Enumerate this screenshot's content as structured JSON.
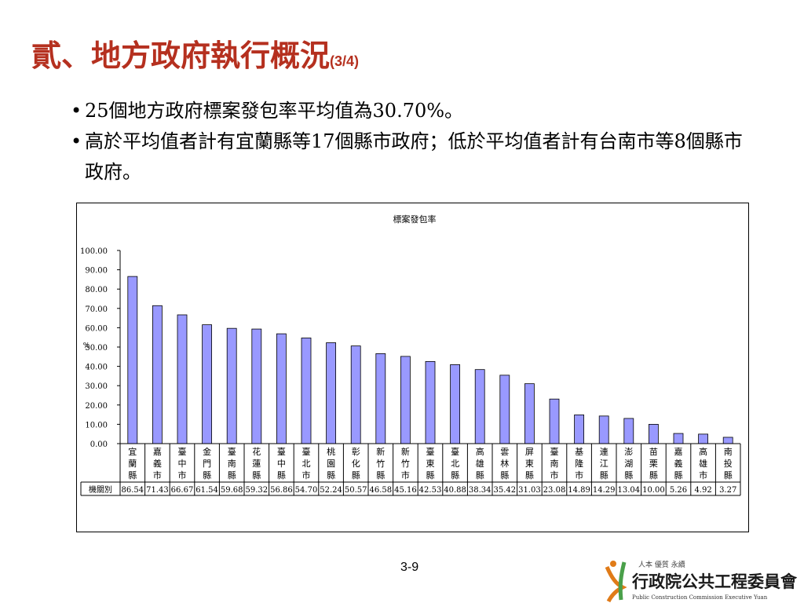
{
  "slide": {
    "title": "貳、地方政府執行概況",
    "title_suffix": "(3/4)",
    "bullets": [
      "25個地方政府標案發包率平均值為30.70%。",
      "高於平均值者計有宜蘭縣等17個縣市政府；低於平均值者計有台南市等8個縣市政府。"
    ],
    "page_number": "3-9",
    "logo": {
      "motto": "人本 優質 永續",
      "name": "行政院公共工程委員會",
      "english": "Public Construction Commission Executive Yuan"
    }
  },
  "chart_data": {
    "type": "bar",
    "title": "標案發包率",
    "ylabel": "%",
    "ylim": [
      0,
      100
    ],
    "yticks": [
      "0.00",
      "10.00",
      "20.00",
      "30.00",
      "40.00",
      "50.00",
      "60.00",
      "70.00",
      "80.00",
      "90.00",
      "100.00"
    ],
    "table_row_label": "機關別",
    "categories": [
      "宜蘭縣",
      "嘉義市",
      "臺中市",
      "金門縣",
      "臺南縣",
      "花蓮縣",
      "臺中縣",
      "臺北市",
      "桃園縣",
      "彰化縣",
      "新竹縣",
      "新竹市",
      "臺東縣",
      "臺北縣",
      "高雄縣",
      "雲林縣",
      "屏東縣",
      "臺南市",
      "基隆市",
      "連江縣",
      "澎湖縣",
      "苗栗縣",
      "嘉義縣",
      "高雄市",
      "南投縣"
    ],
    "values": [
      86.54,
      71.43,
      66.67,
      61.54,
      59.68,
      59.32,
      56.86,
      54.7,
      52.24,
      50.57,
      46.58,
      45.16,
      42.53,
      40.88,
      38.34,
      35.42,
      31.03,
      23.08,
      14.89,
      14.29,
      13.04,
      10.0,
      5.26,
      4.92,
      3.27
    ],
    "value_labels": [
      "86.54",
      "71.43",
      "66.67",
      "61.54",
      "59.68",
      "59.32",
      "56.86",
      "54.70",
      "52.24",
      "50.57",
      "46.58",
      "45.16",
      "42.53",
      "40.88",
      "38.34",
      "35.42",
      "31.03",
      "23.08",
      "14.89",
      "14.29",
      "13.04",
      "10.00",
      "5.26",
      "4.92",
      "3.27"
    ],
    "bar_color": "#9999ff",
    "grid": false,
    "legend": "none"
  }
}
